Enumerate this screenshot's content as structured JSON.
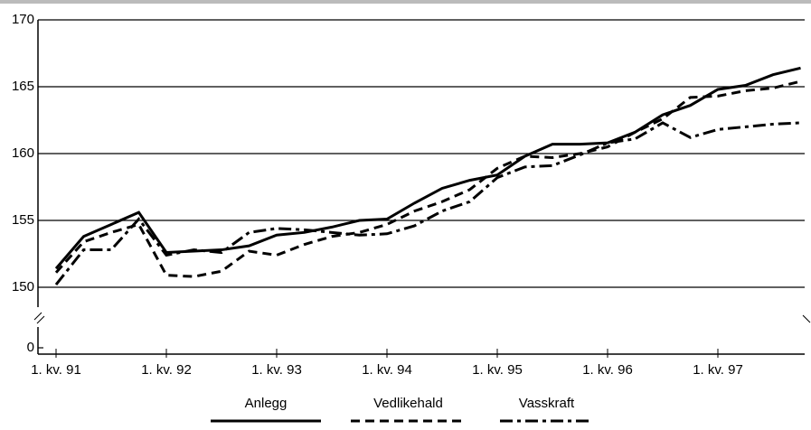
{
  "chart_data": {
    "type": "line",
    "categories": [
      "1. kv. 91",
      null,
      null,
      null,
      "1. kv. 92",
      null,
      null,
      null,
      "1. kv. 93",
      null,
      null,
      null,
      "1. kv. 94",
      null,
      null,
      null,
      "1. kv. 95",
      null,
      null,
      null,
      "1. kv. 96",
      null,
      null,
      null,
      "1. kv. 97",
      null,
      null,
      null
    ],
    "series": [
      {
        "name": "Anlegg",
        "color": "#000000",
        "dash": "solid",
        "values": [
          151.4,
          153.8,
          154.7,
          155.6,
          152.6,
          152.7,
          152.8,
          153.1,
          153.9,
          154.1,
          154.5,
          155.0,
          155.1,
          156.3,
          157.4,
          158.0,
          158.4,
          159.8,
          160.7,
          160.7,
          160.8,
          161.6,
          162.9,
          163.6,
          164.8,
          165.1,
          165.9,
          166.4
        ]
      },
      {
        "name": "Vedlikehald",
        "color": "#000000",
        "dash": "dashed",
        "values": [
          151.1,
          153.4,
          154.1,
          154.7,
          150.9,
          150.8,
          151.2,
          152.7,
          152.4,
          153.2,
          153.8,
          154.1,
          154.7,
          155.7,
          156.4,
          157.3,
          158.9,
          159.8,
          159.7,
          160.0,
          160.5,
          161.6,
          162.6,
          164.2,
          164.3,
          164.7,
          164.9,
          165.4
        ]
      },
      {
        "name": "Vasskraft",
        "color": "#000000",
        "dash": "dashdot",
        "values": [
          150.2,
          152.8,
          152.8,
          155.1,
          152.4,
          152.8,
          152.6,
          154.1,
          154.4,
          154.3,
          154.1,
          153.9,
          154.0,
          154.6,
          155.7,
          156.4,
          158.2,
          159.0,
          159.1,
          159.9,
          160.8,
          161.1,
          162.3,
          161.2,
          161.8,
          162.0,
          162.2,
          162.3
        ]
      }
    ],
    "ylim": [
      150,
      170
    ],
    "yticks": [
      0,
      150,
      155,
      160,
      165,
      170
    ],
    "grid": true,
    "axis_break": true
  }
}
